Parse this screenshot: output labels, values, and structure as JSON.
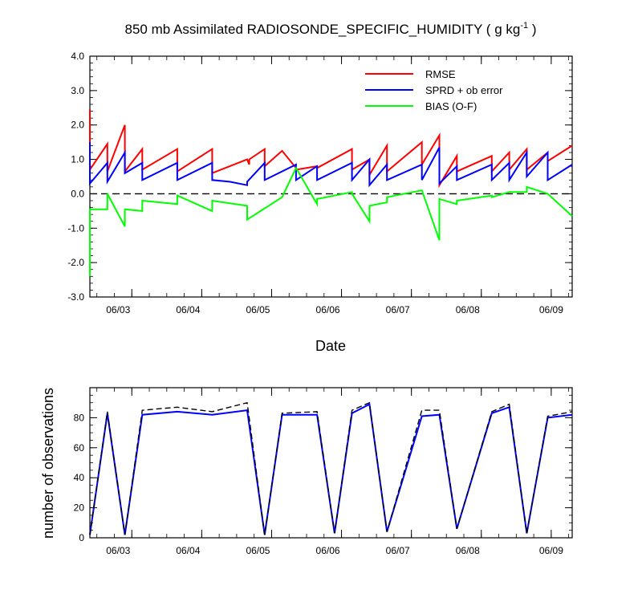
{
  "chart_data": [
    {
      "type": "line",
      "title": "850 mb Assimilated RADIOSONDE_SPECIFIC_HUMIDITY ( g kg",
      "title_units_exp": "-1",
      "title_close": " )",
      "xlabel": "Date",
      "ylabel": "",
      "xlim": [
        0,
        6.9
      ],
      "ylim": [
        -3.0,
        4.0
      ],
      "yticks": [
        -3.0,
        -2.0,
        -1.0,
        0.0,
        1.0,
        2.0,
        3.0,
        4.0
      ],
      "ytick_labels": [
        "-3.0",
        "-2.0",
        "-1.0",
        "0.0",
        "1.0",
        "2.0",
        "3.0",
        "4.0"
      ],
      "xticks": [
        0.6,
        1.6,
        2.6,
        3.6,
        4.6,
        5.6,
        6.6
      ],
      "xtick_labels": [
        "06/03",
        "06/04",
        "06/05",
        "06/06",
        "06/07",
        "06/08",
        "06/09"
      ],
      "zero_line": true,
      "legend_position": "top-right",
      "series": [
        {
          "name": "RMSE",
          "color": "#ff0000",
          "x": [
            0,
            0,
            0.25,
            0.25,
            0.5,
            0.5,
            0.75,
            0.75,
            1.25,
            1.25,
            1.75,
            1.75,
            2.25,
            2.28,
            2.28,
            2.5,
            2.5,
            2.75,
            2.95,
            2.95,
            3.25,
            3.25,
            3.75,
            3.75,
            4.0,
            4.0,
            4.25,
            4.25,
            4.75,
            4.75,
            5.0,
            5.0,
            5.25,
            5.25,
            5.75,
            5.75,
            6.0,
            6.0,
            6.25,
            6.25,
            6.55,
            6.55,
            6.9
          ],
          "y": [
            2.45,
            0.7,
            1.45,
            0.65,
            2.0,
            0.65,
            1.3,
            0.7,
            1.3,
            0.65,
            1.3,
            0.6,
            1.0,
            0.85,
            1.0,
            1.3,
            0.8,
            1.25,
            0.75,
            0.7,
            0.8,
            0.75,
            1.3,
            0.7,
            1.0,
            0.55,
            1.4,
            0.65,
            1.5,
            0.85,
            1.7,
            0.25,
            1.1,
            0.65,
            1.1,
            0.65,
            1.2,
            0.7,
            1.3,
            0.7,
            1.2,
            0.95,
            1.4
          ]
        },
        {
          "name": "SPRD + ob error",
          "color": "#0000ff",
          "x": [
            0,
            0,
            0.25,
            0.25,
            0.5,
            0.5,
            0.75,
            0.75,
            1.25,
            1.25,
            1.75,
            1.75,
            2.0,
            2.25,
            2.25,
            2.5,
            2.5,
            2.95,
            2.95,
            3.25,
            3.25,
            3.75,
            3.75,
            4.0,
            4.0,
            4.25,
            4.25,
            4.75,
            4.75,
            5.0,
            5.0,
            5.25,
            5.25,
            5.75,
            5.75,
            6.0,
            6.0,
            6.25,
            6.25,
            6.55,
            6.55,
            6.9
          ],
          "y": [
            1.5,
            0.3,
            0.9,
            0.35,
            1.2,
            0.6,
            0.9,
            0.4,
            0.9,
            0.4,
            0.9,
            0.4,
            0.35,
            0.25,
            0.35,
            0.9,
            0.4,
            0.85,
            0.4,
            0.8,
            0.4,
            0.9,
            0.4,
            1.0,
            0.25,
            0.85,
            0.4,
            0.85,
            0.4,
            1.35,
            0.3,
            0.8,
            0.4,
            0.85,
            0.4,
            0.9,
            0.4,
            1.2,
            0.5,
            1.2,
            0.4,
            0.85
          ]
        },
        {
          "name": "BIAS (O-F)",
          "color": "#00ff00",
          "x": [
            0,
            0,
            0.25,
            0.25,
            0.5,
            0.5,
            0.75,
            0.75,
            1.0,
            1.25,
            1.25,
            1.75,
            1.75,
            2.25,
            2.25,
            2.75,
            2.95,
            3.25,
            3.25,
            3.75,
            3.75,
            4.0,
            4.0,
            4.25,
            4.25,
            4.75,
            4.75,
            5.0,
            5.0,
            5.25,
            5.25,
            5.75,
            5.75,
            6.0,
            6.0,
            6.25,
            6.25,
            6.55,
            6.55,
            6.9
          ],
          "y": [
            -2.4,
            -0.45,
            -0.45,
            0.0,
            -0.95,
            -0.45,
            -0.5,
            -0.2,
            -0.25,
            -0.3,
            -0.05,
            -0.5,
            -0.2,
            -0.35,
            -0.75,
            -0.1,
            0.75,
            -0.3,
            -0.15,
            0.05,
            0.0,
            -0.8,
            -0.35,
            -0.25,
            -0.1,
            0.1,
            0.1,
            -1.35,
            -0.15,
            -0.3,
            -0.2,
            -0.05,
            -0.1,
            0.05,
            0.05,
            0.05,
            0.2,
            0.0,
            0.0,
            -0.65
          ]
        }
      ]
    },
    {
      "type": "line",
      "title": "",
      "xlabel": "",
      "ylabel": "number of observations",
      "xlim": [
        0,
        6.9
      ],
      "ylim": [
        0,
        100
      ],
      "yticks": [
        0,
        20,
        40,
        60,
        80
      ],
      "ytick_labels": [
        "0",
        "20",
        "40",
        "60",
        "80"
      ],
      "xticks": [
        0.6,
        1.6,
        2.6,
        3.6,
        4.6,
        5.6,
        6.6
      ],
      "xtick_labels": [
        "06/03",
        "06/04",
        "06/05",
        "06/06",
        "06/07",
        "06/08",
        "06/09"
      ],
      "series": [
        {
          "color": "#0000ff",
          "style": "solid",
          "x": [
            0,
            0.25,
            0.5,
            0.75,
            1.25,
            1.75,
            2.25,
            2.5,
            2.75,
            3.25,
            3.5,
            3.75,
            4.0,
            4.25,
            4.75,
            5.0,
            5.25,
            5.75,
            6.0,
            6.25,
            6.55,
            6.9
          ],
          "y": [
            2,
            83,
            2,
            82,
            84,
            82,
            85,
            2,
            82,
            82,
            3,
            83,
            89,
            4,
            81,
            82,
            6,
            83,
            87,
            3,
            80,
            82
          ]
        },
        {
          "color": "#000000",
          "style": "dashed",
          "x": [
            0,
            0.25,
            0.5,
            0.75,
            1.25,
            1.75,
            2.25,
            2.5,
            2.75,
            3.25,
            3.5,
            3.75,
            4.0,
            4.25,
            4.75,
            5.0,
            5.25,
            5.75,
            6.0,
            6.25,
            6.55,
            6.9
          ],
          "y": [
            2,
            84,
            2,
            85,
            87,
            84,
            90,
            2,
            83,
            84,
            3,
            85,
            90,
            4,
            85,
            85,
            6,
            84,
            89,
            3,
            81,
            84
          ]
        }
      ]
    }
  ]
}
